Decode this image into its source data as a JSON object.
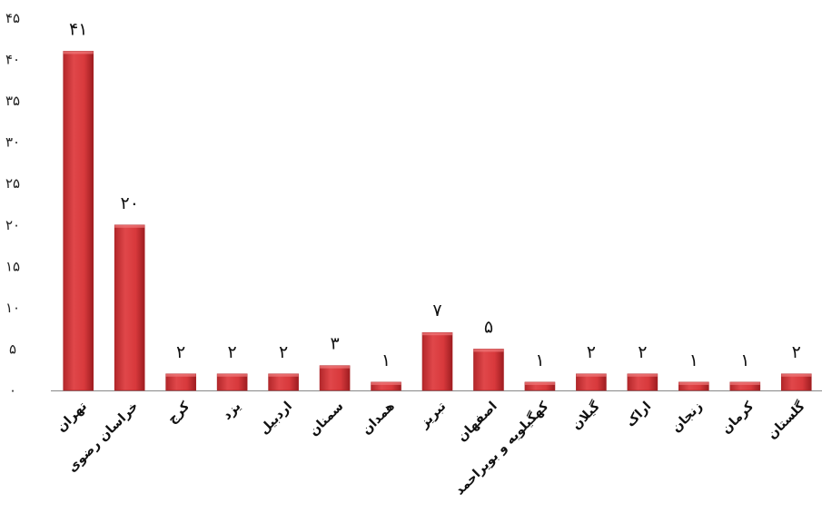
{
  "chart_data": {
    "type": "bar",
    "categories": [
      "تهران",
      "خراسان رضوی",
      "کرج",
      "یزد",
      "اردبیل",
      "سمنان",
      "همدان",
      "تبریز",
      "اصفهان",
      "کهگیلویه و بویراحمد",
      "گیلان",
      "اراک",
      "زنجان",
      "کرمان",
      "گلستان"
    ],
    "values": [
      41,
      20,
      2,
      2,
      2,
      3,
      1,
      7,
      5,
      1,
      2,
      2,
      1,
      1,
      2
    ],
    "value_labels": [
      "۴۱",
      "۲۰",
      "۲",
      "۲",
      "۲",
      "۳",
      "۱",
      "۷",
      "۵",
      "۱",
      "۲",
      "۲",
      "۱",
      "۱",
      "۲"
    ],
    "yticks": [
      0,
      5,
      10,
      15,
      20,
      25,
      30,
      35,
      40,
      45
    ],
    "ytick_labels": [
      "۰",
      "۵",
      "۱۰",
      "۱۵",
      "۲۰",
      "۲۵",
      "۳۰",
      "۳۵",
      "۴۰",
      "۴۵"
    ],
    "ylim": [
      0,
      45
    ],
    "title": "",
    "xlabel": "",
    "ylabel": "",
    "grid": false,
    "legend": "none",
    "bar_color": "#d9383a",
    "bar_color_dark": "#a82024",
    "axis_color": "#888888"
  }
}
